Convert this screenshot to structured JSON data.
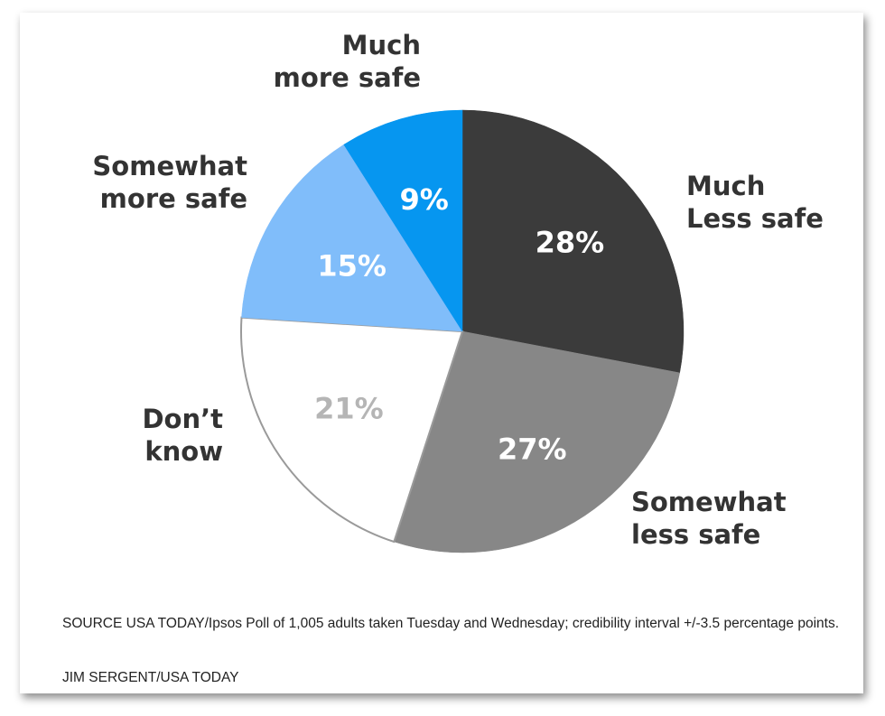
{
  "chart_data": {
    "type": "pie",
    "start_angle_deg": 0,
    "direction": "clockwise",
    "slices": [
      {
        "label_lines": [
          "Much",
          "Less safe"
        ],
        "value": 28,
        "value_label": "28%",
        "color": "#3b3b3b",
        "text_color": "#ffffff"
      },
      {
        "label_lines": [
          "Somewhat",
          "less safe"
        ],
        "value": 27,
        "value_label": "27%",
        "color": "#878787",
        "text_color": "#ffffff"
      },
      {
        "label_lines": [
          "Don’t",
          "know"
        ],
        "value": 21,
        "value_label": "21%",
        "color": "#ffffff",
        "text_color": "#b5b5b5"
      },
      {
        "label_lines": [
          "Somewhat",
          "more safe"
        ],
        "value": 15,
        "value_label": "15%",
        "color": "#80bdfa",
        "text_color": "#ffffff"
      },
      {
        "label_lines": [
          "Much",
          "more safe"
        ],
        "value": 9,
        "value_label": "9%",
        "color": "#0696f0",
        "text_color": "#ffffff"
      }
    ]
  },
  "footer": {
    "source": "SOURCE USA TODAY/Ipsos Poll of 1,005 adults taken Tuesday and Wednesday; credibility interval +/-3.5 percentage points.",
    "credit": "JIM SERGENT/USA TODAY"
  }
}
